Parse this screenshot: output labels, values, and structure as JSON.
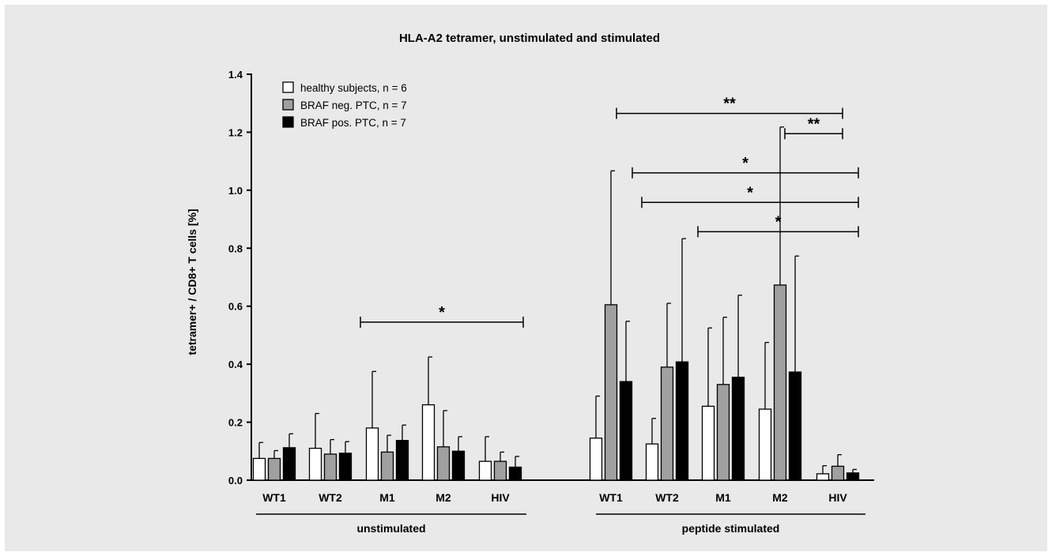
{
  "chart_data": {
    "type": "bar",
    "title": "HLA-A2 tetramer, unstimulated and stimulated",
    "ylabel": "tetramer+ / CD8+ T cells [%]",
    "ylim": [
      0,
      1.4
    ],
    "yticks": [
      "0.0",
      "0.2",
      "0.4",
      "0.6",
      "0.8",
      "1.0",
      "1.2",
      "1.4"
    ],
    "grid": false,
    "legend_position": "top-left",
    "groups": [
      {
        "label": "unstimulated",
        "categories": [
          "WT1",
          "WT2",
          "M1",
          "M2",
          "HIV"
        ],
        "series": [
          {
            "name": "healthy subjects, n = 6",
            "color": "#ffffff",
            "values": [
              0.075,
              0.11,
              0.18,
              0.26,
              0.065
            ],
            "errors": [
              0.055,
              0.12,
              0.195,
              0.165,
              0.085
            ]
          },
          {
            "name": "BRAF neg. PTC, n = 7",
            "color": "#a0a0a0",
            "values": [
              0.075,
              0.09,
              0.097,
              0.115,
              0.065
            ],
            "errors": [
              0.027,
              0.05,
              0.058,
              0.125,
              0.032
            ]
          },
          {
            "name": "BRAF pos. PTC, n = 7",
            "color": "#000000",
            "values": [
              0.112,
              0.093,
              0.137,
              0.1,
              0.045
            ],
            "errors": [
              0.048,
              0.04,
              0.053,
              0.05,
              0.037
            ]
          }
        ]
      },
      {
        "label": "peptide stimulated",
        "categories": [
          "WT1",
          "WT2",
          "M1",
          "M2",
          "HIV"
        ],
        "series": [
          {
            "name": "healthy subjects, n = 6",
            "color": "#ffffff",
            "values": [
              0.145,
              0.125,
              0.255,
              0.245,
              0.022
            ],
            "errors": [
              0.145,
              0.088,
              0.27,
              0.23,
              0.028
            ]
          },
          {
            "name": "BRAF neg. PTC, n = 7",
            "color": "#a0a0a0",
            "values": [
              0.605,
              0.39,
              0.33,
              0.673,
              0.048
            ],
            "errors": [
              0.462,
              0.22,
              0.232,
              0.545,
              0.04
            ]
          },
          {
            "name": "BRAF pos. PTC, n = 7",
            "color": "#000000",
            "values": [
              0.34,
              0.408,
              0.355,
              0.373,
              0.025
            ],
            "errors": [
              0.208,
              0.425,
              0.283,
              0.4,
              0.012
            ]
          }
        ]
      }
    ],
    "significance": [
      {
        "label": "*",
        "group": 0,
        "from": "M1",
        "to": "HIV",
        "y": 0.545
      },
      {
        "label": "**",
        "group": 1,
        "from": "WT1",
        "to": "HIV",
        "y": 1.265
      },
      {
        "label": "**",
        "group": 1,
        "from": "M2",
        "to": "HIV",
        "y": 1.195
      },
      {
        "label": "*",
        "group": 1,
        "from": "WT1",
        "to": "HIV",
        "y": 1.06
      },
      {
        "label": "*",
        "group": 1,
        "from": "WT2",
        "to": "HIV",
        "y": 0.958
      },
      {
        "label": "*",
        "group": 1,
        "from": "M1",
        "to": "HIV",
        "y": 0.857
      }
    ]
  }
}
